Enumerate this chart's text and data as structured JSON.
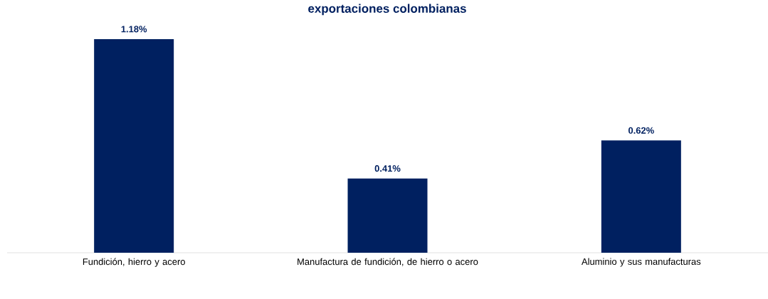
{
  "chart_data": {
    "type": "bar",
    "title": "exportaciones colombianas",
    "categories": [
      "Fundición, hierro y acero",
      "Manufactura de fundición, de hierro o acero",
      "Aluminio y sus manufacturas"
    ],
    "values": [
      1.18,
      0.41,
      0.62
    ],
    "value_labels": [
      "1.18%",
      "0.41%",
      "0.62%"
    ],
    "color": "#002060"
  }
}
